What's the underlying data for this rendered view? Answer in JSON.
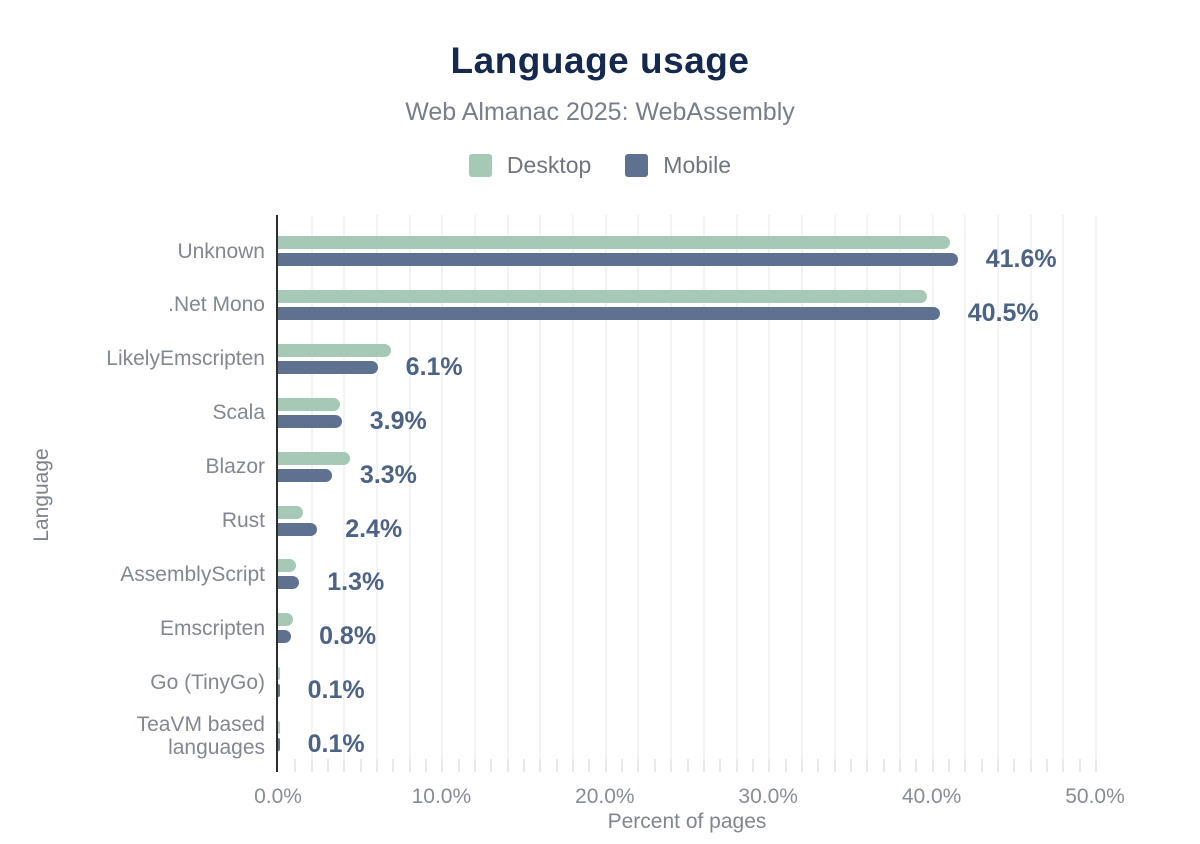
{
  "chart_data": {
    "type": "bar",
    "orientation": "horizontal",
    "title": "Language usage",
    "subtitle": "Web Almanac 2025: WebAssembly",
    "xlabel": "Percent of pages",
    "ylabel": "Language",
    "xlim": [
      0,
      50
    ],
    "x_tick_labels": [
      "0.0%",
      "10.0%",
      "20.0%",
      "30.0%",
      "40.0%",
      "50.0%"
    ],
    "x_tick_values": [
      0,
      10,
      20,
      30,
      40,
      50
    ],
    "grid": "vertical, every 2%",
    "legend_position": "top",
    "categories": [
      "Unknown",
      ".Net Mono",
      "LikelyEmscripten",
      "Scala",
      "Blazor",
      "Rust",
      "AssemblyScript",
      "Emscripten",
      "Go (TinyGo)",
      "TeaVM based languages"
    ],
    "series": [
      {
        "name": "Desktop",
        "color": "#a5c9b6",
        "values": [
          41.1,
          39.7,
          6.9,
          3.8,
          4.4,
          1.5,
          1.1,
          0.9,
          0.1,
          0.1
        ]
      },
      {
        "name": "Mobile",
        "color": "#5e7191",
        "values": [
          41.6,
          40.5,
          6.1,
          3.9,
          3.3,
          2.4,
          1.3,
          0.8,
          0.1,
          0.1
        ]
      }
    ],
    "value_labels": [
      "41.6%",
      "40.5%",
      "6.1%",
      "3.9%",
      "3.3%",
      "2.4%",
      "1.3%",
      "0.8%",
      "0.1%",
      "0.1%"
    ]
  },
  "colors": {
    "title": "#15294e",
    "subtitle": "#787f88",
    "desktop_bar": "#a5c9b6",
    "mobile_bar": "#5e7191",
    "value_label": "#4d6385",
    "axis_line": "#2d2d2d",
    "gridline": "#f3f3f3"
  }
}
